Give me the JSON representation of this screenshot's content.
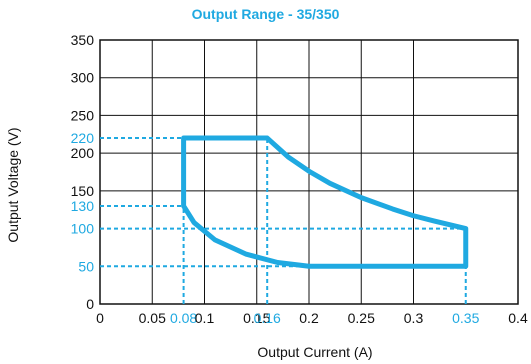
{
  "chart_data": {
    "type": "line",
    "title": "Output Range - 35/350",
    "xlabel": "Output Current (A)",
    "ylabel": "Output Voltage (V)",
    "xlim": [
      0,
      0.4
    ],
    "ylim": [
      0,
      350
    ],
    "x_ticks": [
      "0",
      "0.05",
      "0.08",
      "0.1",
      "0.15",
      "0.16",
      "0.2",
      "0.25",
      "0.3",
      "0.35",
      "0.4"
    ],
    "y_ticks": [
      "0",
      "50",
      "100",
      "130",
      "150",
      "200",
      "220",
      "250",
      "300",
      "350"
    ],
    "highlight_x_ticks": [
      "0.08",
      "0.16",
      "0.35"
    ],
    "highlight_y_ticks": [
      "50",
      "100",
      "130",
      "220"
    ],
    "grid": true,
    "colors": {
      "accent": "#1fa9e1",
      "text": "#111111",
      "grid": "#111111"
    },
    "reference_lines": [
      {
        "points": [
          [
            0,
            220
          ],
          [
            0.08,
            220
          ]
        ]
      },
      {
        "points": [
          [
            0,
            130
          ],
          [
            0.08,
            130
          ]
        ]
      },
      {
        "points": [
          [
            0,
            100
          ],
          [
            0.35,
            100
          ]
        ]
      },
      {
        "points": [
          [
            0,
            50
          ],
          [
            0.35,
            50
          ]
        ]
      },
      {
        "points": [
          [
            0.08,
            0
          ],
          [
            0.08,
            130
          ]
        ]
      },
      {
        "points": [
          [
            0.16,
            0
          ],
          [
            0.16,
            220
          ]
        ]
      },
      {
        "points": [
          [
            0.35,
            0
          ],
          [
            0.35,
            100
          ]
        ]
      }
    ],
    "series": [
      {
        "points": [
          [
            0.08,
            130
          ],
          [
            0.08,
            220
          ],
          [
            0.16,
            220
          ],
          [
            0.18,
            195
          ],
          [
            0.2,
            176
          ],
          [
            0.22,
            160
          ],
          [
            0.25,
            141
          ],
          [
            0.28,
            126
          ],
          [
            0.3,
            117
          ],
          [
            0.32,
            110
          ],
          [
            0.35,
            100
          ],
          [
            0.35,
            50
          ],
          [
            0.2,
            50
          ],
          [
            0.17,
            55
          ],
          [
            0.14,
            66
          ],
          [
            0.11,
            85
          ],
          [
            0.09,
            108
          ],
          [
            0.08,
            130
          ]
        ]
      }
    ]
  }
}
